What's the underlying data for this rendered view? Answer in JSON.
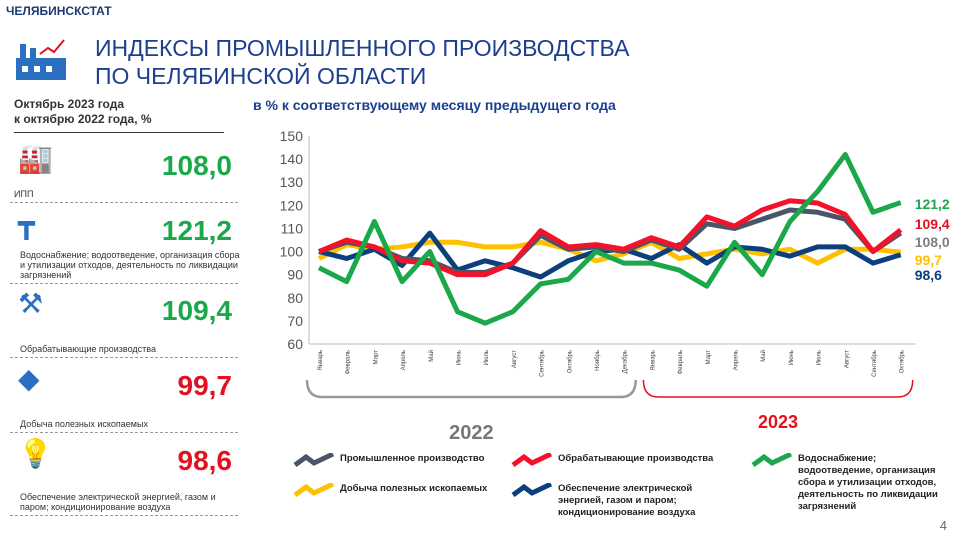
{
  "org": "ЧЕЛЯБИНСКСТАТ",
  "title_line1": "ИНДЕКСЫ ПРОМЫШЛЕННОГО ПРОИЗВОДСТВА",
  "title_line2": "ПО ЧЕЛЯБИНСКОЙ ОБЛАСТИ",
  "period_line1": "Октябрь 2023 года",
  "period_line2": "к октябрю 2022 года, %",
  "indicators": [
    {
      "label": "ИПП",
      "value": "108,0",
      "color": "#1aa84a",
      "icon": "factory-icon"
    },
    {
      "label": "Водоснабжение; водоотведение, организация сбора и утилизации отходов, деятельность по ликвидации загрязнений",
      "value": "121,2",
      "color": "#1aa84a",
      "icon": "water-pipe-icon"
    },
    {
      "label": "Обрабатывающие производства",
      "value": "109,4",
      "color": "#1aa84a",
      "icon": "hammer-gear-icon"
    },
    {
      "label": "Добыча полезных ископаемых",
      "value": "99,7",
      "color": "#e3101f",
      "icon": "shovel-diamond-icon"
    },
    {
      "label": "Обеспечение электрической энергией, газом и паром; кондиционирование воздуха",
      "value": "98,6",
      "color": "#e3101f",
      "icon": "lightbulb-icon"
    }
  ],
  "page_number": "4",
  "chart_data": {
    "type": "line",
    "title": "в % к соответствующему месяцу предыдущего года",
    "ylim": [
      60,
      150
    ],
    "yticks": [
      60,
      70,
      80,
      90,
      100,
      110,
      120,
      130,
      140,
      150
    ],
    "categories": [
      "Январь",
      "Февраль",
      "Март",
      "Апрель",
      "Май",
      "Июнь",
      "Июль",
      "Август",
      "Сентябрь",
      "Октябрь",
      "Ноябрь",
      "Декабрь",
      "Январь",
      "Февраль",
      "Март",
      "Апрель",
      "Май",
      "Июнь",
      "Июль",
      "Август",
      "Сентябрь",
      "Октябрь"
    ],
    "year_groups": [
      {
        "label": "2022",
        "color": "#777777"
      },
      {
        "label": "2023",
        "color": "#e3101f"
      }
    ],
    "series": [
      {
        "name": "Промышленное производство",
        "color": "#4a5568",
        "values": [
          100,
          104,
          102,
          97,
          96,
          91,
          91,
          95,
          107,
          101,
          102,
          100,
          105,
          101,
          112,
          110,
          114,
          118,
          117,
          114,
          100,
          108.0
        ],
        "end_label": "108,0",
        "label_color": "#7f7f7f"
      },
      {
        "name": "Водоснабжение; водоотведение, организация сбора и утилизации отходов, деятельность по ликвидации загрязнений",
        "color": "#1aa84a",
        "values": [
          93,
          87,
          113,
          87,
          100,
          74,
          69,
          74,
          86,
          88,
          100,
          95,
          95,
          92,
          85,
          104,
          90,
          113,
          126,
          142,
          117,
          121.2
        ],
        "end_label": "121,2",
        "label_color": "#1aa84a"
      },
      {
        "name": "Обрабатывающие производства",
        "color": "#f5112a",
        "values": [
          100,
          105,
          102,
          96,
          95,
          90,
          90,
          95,
          109,
          102,
          103,
          101,
          106,
          102,
          115,
          111,
          118,
          122,
          121,
          116,
          100,
          109.4
        ],
        "end_label": "109,4",
        "label_color": "#e3101f"
      },
      {
        "name": "Добыча полезных ископаемых",
        "color": "#ffc000",
        "values": [
          97,
          103,
          101,
          102,
          104,
          104,
          102,
          102,
          104,
          101,
          96,
          99,
          104,
          97,
          99,
          101,
          99,
          101,
          95,
          101,
          101,
          99.7
        ],
        "end_label": "99,7",
        "label_color": "#ffc000"
      },
      {
        "name": "Обеспечение электрической энергией, газом и паром; кондиционирование воздуха",
        "color": "#0b3f7e",
        "values": [
          100,
          97,
          101,
          94,
          108,
          92,
          96,
          93,
          89,
          96,
          100,
          101,
          97,
          103,
          95,
          102,
          101,
          98,
          102,
          102,
          95,
          98.6
        ],
        "end_label": "98,6",
        "label_color": "#0b3f7e"
      }
    ]
  }
}
